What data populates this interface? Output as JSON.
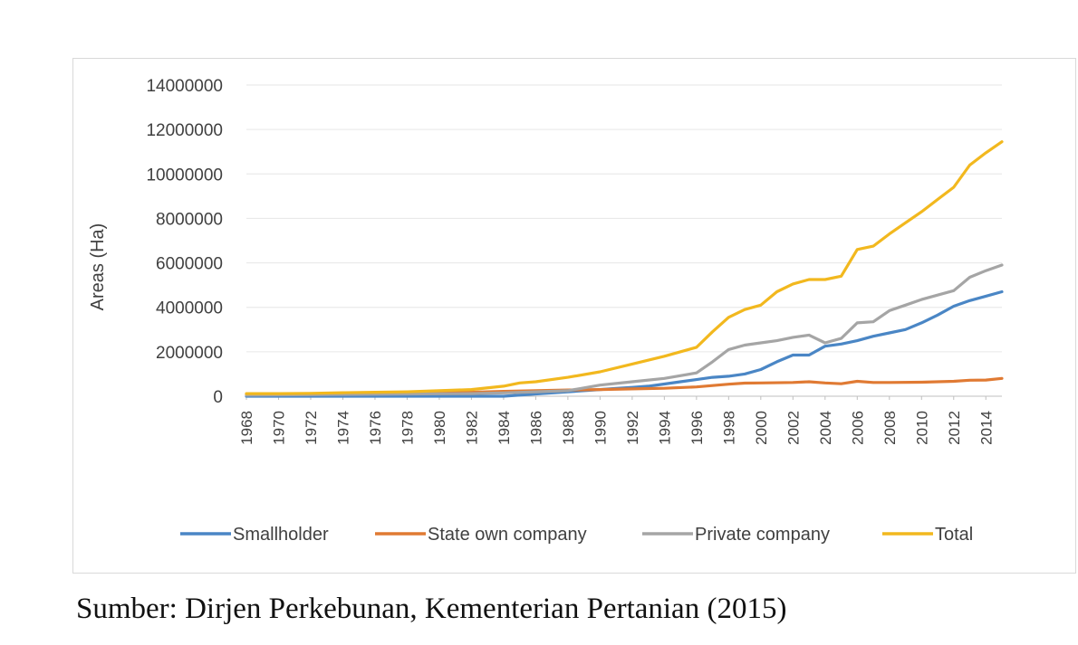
{
  "chart_data": {
    "type": "line",
    "title": "",
    "xlabel": "",
    "ylabel": "Areas (Ha)",
    "ylim": [
      0,
      14000000
    ],
    "yticks": [
      0,
      2000000,
      4000000,
      6000000,
      8000000,
      10000000,
      12000000,
      14000000
    ],
    "ytick_labels": [
      "0",
      "2000000",
      "4000000",
      "6000000",
      "8000000",
      "10000000",
      "12000000",
      "14000000"
    ],
    "xticks": [
      "1968",
      "1970",
      "1972",
      "1974",
      "1976",
      "1978",
      "1980",
      "1982",
      "1984",
      "1986",
      "1988",
      "1990",
      "1992",
      "1994",
      "1996",
      "1998",
      "2000",
      "2002",
      "2004",
      "2006",
      "2008",
      "2010",
      "2012",
      "2014"
    ],
    "x_range": [
      1968,
      2015
    ],
    "grid": "horizontal",
    "legend_position": "bottom",
    "series": [
      {
        "name": "Smallholder",
        "color": "#4a86c5",
        "x": [
          1968,
          1970,
          1972,
          1974,
          1976,
          1978,
          1980,
          1982,
          1984,
          1986,
          1988,
          1990,
          1991,
          1992,
          1993,
          1994,
          1995,
          1996,
          1997,
          1998,
          1999,
          2000,
          2001,
          2002,
          2003,
          2004,
          2005,
          2006,
          2007,
          2008,
          2009,
          2010,
          2011,
          2012,
          2013,
          2014,
          2015
        ],
        "values": [
          0,
          0,
          0,
          0,
          0,
          0,
          0,
          0,
          0,
          100000,
          200000,
          300000,
          350000,
          400000,
          450000,
          550000,
          650000,
          750000,
          850000,
          900000,
          1000000,
          1200000,
          1550000,
          1850000,
          1850000,
          2250000,
          2350000,
          2500000,
          2700000,
          2850000,
          3000000,
          3300000,
          3650000,
          4050000,
          4300000,
          4500000,
          4700000
        ]
      },
      {
        "name": "State own company",
        "color": "#e07a33",
        "x": [
          1968,
          1970,
          1972,
          1974,
          1976,
          1978,
          1980,
          1982,
          1984,
          1986,
          1988,
          1990,
          1992,
          1994,
          1996,
          1998,
          1999,
          2000,
          2002,
          2003,
          2004,
          2005,
          2006,
          2007,
          2008,
          2010,
          2012,
          2013,
          2014,
          2015
        ],
        "values": [
          80000,
          80000,
          80000,
          100000,
          110000,
          120000,
          150000,
          180000,
          220000,
          250000,
          280000,
          300000,
          330000,
          360000,
          420000,
          540000,
          590000,
          600000,
          620000,
          650000,
          600000,
          560000,
          670000,
          620000,
          620000,
          630000,
          670000,
          720000,
          730000,
          800000
        ]
      },
      {
        "name": "Private company",
        "color": "#a5a5a5",
        "x": [
          1968,
          1970,
          1972,
          1974,
          1976,
          1978,
          1980,
          1982,
          1984,
          1986,
          1988,
          1990,
          1992,
          1994,
          1996,
          1997,
          1998,
          1999,
          2000,
          2001,
          2002,
          2003,
          2004,
          2005,
          2006,
          2007,
          2008,
          2009,
          2010,
          2011,
          2012,
          2013,
          2014,
          2015
        ],
        "values": [
          50000,
          60000,
          70000,
          80000,
          90000,
          100000,
          110000,
          120000,
          150000,
          200000,
          250000,
          500000,
          650000,
          800000,
          1050000,
          1550000,
          2100000,
          2300000,
          2400000,
          2500000,
          2650000,
          2750000,
          2400000,
          2600000,
          3300000,
          3350000,
          3850000,
          4100000,
          4350000,
          4550000,
          4750000,
          5350000,
          5650000,
          5900000
        ]
      },
      {
        "name": "Total",
        "color": "#f2b81e",
        "x": [
          1968,
          1970,
          1972,
          1974,
          1976,
          1978,
          1980,
          1982,
          1984,
          1985,
          1986,
          1988,
          1990,
          1992,
          1994,
          1996,
          1997,
          1998,
          1999,
          2000,
          2001,
          2002,
          2003,
          2004,
          2005,
          2006,
          2007,
          2008,
          2009,
          2010,
          2011,
          2012,
          2013,
          2014,
          2015
        ],
        "values": [
          120000,
          120000,
          130000,
          160000,
          180000,
          200000,
          250000,
          300000,
          450000,
          600000,
          650000,
          850000,
          1100000,
          1450000,
          1800000,
          2200000,
          2900000,
          3550000,
          3900000,
          4100000,
          4700000,
          5050000,
          5250000,
          5250000,
          5400000,
          6600000,
          6750000,
          7300000,
          7800000,
          8300000,
          8850000,
          9400000,
          10400000,
          10950000,
          11450000
        ]
      }
    ]
  },
  "caption": "Sumber: Dirjen Perkebunan, Kementerian Pertanian (2015)"
}
